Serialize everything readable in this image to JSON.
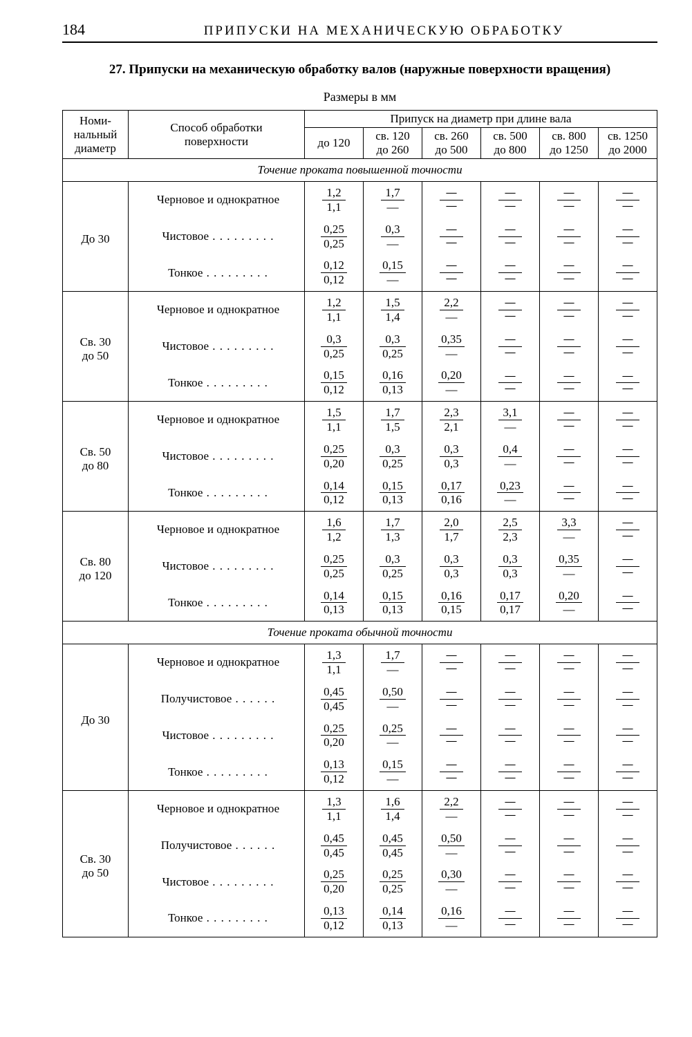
{
  "page_number": "184",
  "running_head": "ПРИПУСКИ НА МЕХАНИЧЕСКУЮ ОБРАБОТКУ",
  "caption": "27. Припуски на механическую обработку валов (наружные поверхности вращения)",
  "subcaption": "Размеры в мм",
  "headers": {
    "diam": "Номи-\nнальный\nдиаметр",
    "method": "Способ обработки\nповерхности",
    "span": "Припуск на диаметр при длине вала",
    "cols": [
      "до 120",
      "св. 120\nдо 260",
      "св. 260\nдо 500",
      "св. 500\nдо 800",
      "св. 800\nдо 1250",
      "св. 1250\nдо 2000"
    ]
  },
  "sections": [
    {
      "title": "Точение проката повышенной точности",
      "groups": [
        {
          "diam": "До 30",
          "rows": [
            {
              "label": "Черновое и однократное",
              "dots": false,
              "vals": [
                [
                  "1,2",
                  "1,1"
                ],
                [
                  "1,7",
                  "—"
                ],
                [
                  "—",
                  "—"
                ],
                [
                  "—",
                  "—"
                ],
                [
                  "—",
                  "—"
                ],
                [
                  "—",
                  "—"
                ]
              ]
            },
            {
              "label": "Чистовое",
              "dots": true,
              "vals": [
                [
                  "0,25",
                  "0,25"
                ],
                [
                  "0,3",
                  "—"
                ],
                [
                  "—",
                  "—"
                ],
                [
                  "—",
                  "—"
                ],
                [
                  "—",
                  "—"
                ],
                [
                  "—",
                  "—"
                ]
              ]
            },
            {
              "label": "Тонкое",
              "dots": true,
              "vals": [
                [
                  "0,12",
                  "0,12"
                ],
                [
                  "0,15",
                  "—"
                ],
                [
                  "—",
                  "—"
                ],
                [
                  "—",
                  "—"
                ],
                [
                  "—",
                  "—"
                ],
                [
                  "—",
                  "—"
                ]
              ]
            }
          ]
        },
        {
          "diam": "Св. 30\nдо 50",
          "rows": [
            {
              "label": "Черновое и однократное",
              "dots": false,
              "vals": [
                [
                  "1,2",
                  "1,1"
                ],
                [
                  "1,5",
                  "1,4"
                ],
                [
                  "2,2",
                  "—"
                ],
                [
                  "—",
                  "—"
                ],
                [
                  "—",
                  "—"
                ],
                [
                  "—",
                  "—"
                ]
              ]
            },
            {
              "label": "Чистовое",
              "dots": true,
              "vals": [
                [
                  "0,3",
                  "0,25"
                ],
                [
                  "0,3",
                  "0,25"
                ],
                [
                  "0,35",
                  "—"
                ],
                [
                  "—",
                  "—"
                ],
                [
                  "—",
                  "—"
                ],
                [
                  "—",
                  "—"
                ]
              ]
            },
            {
              "label": "Тонкое",
              "dots": true,
              "vals": [
                [
                  "0,15",
                  "0,12"
                ],
                [
                  "0,16",
                  "0,13"
                ],
                [
                  "0,20",
                  "—"
                ],
                [
                  "—",
                  "—"
                ],
                [
                  "—",
                  "—"
                ],
                [
                  "—",
                  "—"
                ]
              ]
            }
          ]
        },
        {
          "diam": "Св. 50\nдо 80",
          "rows": [
            {
              "label": "Черновое и однократное",
              "dots": false,
              "vals": [
                [
                  "1,5",
                  "1,1"
                ],
                [
                  "1,7",
                  "1,5"
                ],
                [
                  "2,3",
                  "2,1"
                ],
                [
                  "3,1",
                  "—"
                ],
                [
                  "—",
                  "—"
                ],
                [
                  "—",
                  "—"
                ]
              ]
            },
            {
              "label": "Чистовое",
              "dots": true,
              "vals": [
                [
                  "0,25",
                  "0,20"
                ],
                [
                  "0,3",
                  "0,25"
                ],
                [
                  "0,3",
                  "0,3"
                ],
                [
                  "0,4",
                  "—"
                ],
                [
                  "—",
                  "—"
                ],
                [
                  "—",
                  "—"
                ]
              ]
            },
            {
              "label": "Тонкое",
              "dots": true,
              "vals": [
                [
                  "0,14",
                  "0,12"
                ],
                [
                  "0,15",
                  "0,13"
                ],
                [
                  "0,17",
                  "0,16"
                ],
                [
                  "0,23",
                  "—"
                ],
                [
                  "—",
                  "—"
                ],
                [
                  "—",
                  "—"
                ]
              ]
            }
          ]
        },
        {
          "diam": "Св. 80\nдо 120",
          "rows": [
            {
              "label": "Черновое и однократное",
              "dots": false,
              "vals": [
                [
                  "1,6",
                  "1,2"
                ],
                [
                  "1,7",
                  "1,3"
                ],
                [
                  "2,0",
                  "1,7"
                ],
                [
                  "2,5",
                  "2,3"
                ],
                [
                  "3,3",
                  "—"
                ],
                [
                  "—",
                  "—"
                ]
              ]
            },
            {
              "label": "Чистовое",
              "dots": true,
              "vals": [
                [
                  "0,25",
                  "0,25"
                ],
                [
                  "0,3",
                  "0,25"
                ],
                [
                  "0,3",
                  "0,3"
                ],
                [
                  "0,3",
                  "0,3"
                ],
                [
                  "0,35",
                  "—"
                ],
                [
                  "—",
                  "—"
                ]
              ]
            },
            {
              "label": "Тонкое",
              "dots": true,
              "vals": [
                [
                  "0,14",
                  "0,13"
                ],
                [
                  "0,15",
                  "0,13"
                ],
                [
                  "0,16",
                  "0,15"
                ],
                [
                  "0,17",
                  "0,17"
                ],
                [
                  "0,20",
                  "—"
                ],
                [
                  "—",
                  "—"
                ]
              ]
            }
          ]
        }
      ]
    },
    {
      "title": "Точение проката обычной точности",
      "groups": [
        {
          "diam": "До 30",
          "rows": [
            {
              "label": "Черновое и однократное",
              "dots": false,
              "vals": [
                [
                  "1,3",
                  "1,1"
                ],
                [
                  "1,7",
                  "—"
                ],
                [
                  "—",
                  "—"
                ],
                [
                  "—",
                  "—"
                ],
                [
                  "—",
                  "—"
                ],
                [
                  "—",
                  "—"
                ]
              ]
            },
            {
              "label": "Получистовое",
              "dots": "6",
              "vals": [
                [
                  "0,45",
                  "0,45"
                ],
                [
                  "0,50",
                  "—"
                ],
                [
                  "—",
                  "—"
                ],
                [
                  "—",
                  "—"
                ],
                [
                  "—",
                  "—"
                ],
                [
                  "—",
                  "—"
                ]
              ]
            },
            {
              "label": "Чистовое",
              "dots": true,
              "vals": [
                [
                  "0,25",
                  "0,20"
                ],
                [
                  "0,25",
                  "—"
                ],
                [
                  "—",
                  "—"
                ],
                [
                  "—",
                  "—"
                ],
                [
                  "—",
                  "—"
                ],
                [
                  "—",
                  "—"
                ]
              ]
            },
            {
              "label": "Тонкое",
              "dots": true,
              "vals": [
                [
                  "0,13",
                  "0,12"
                ],
                [
                  "0,15",
                  "—"
                ],
                [
                  "—",
                  "—"
                ],
                [
                  "—",
                  "—"
                ],
                [
                  "—",
                  "—"
                ],
                [
                  "—",
                  "—"
                ]
              ]
            }
          ]
        },
        {
          "diam": "Св. 30\nдо 50",
          "rows": [
            {
              "label": "Черновое и однократное",
              "dots": false,
              "vals": [
                [
                  "1,3",
                  "1,1"
                ],
                [
                  "1,6",
                  "1,4"
                ],
                [
                  "2,2",
                  "—"
                ],
                [
                  "—",
                  "—"
                ],
                [
                  "—",
                  "—"
                ],
                [
                  "—",
                  "—"
                ]
              ]
            },
            {
              "label": "Получистовое",
              "dots": "6",
              "vals": [
                [
                  "0,45",
                  "0,45"
                ],
                [
                  "0,45",
                  "0,45"
                ],
                [
                  "0,50",
                  "—"
                ],
                [
                  "—",
                  "—"
                ],
                [
                  "—",
                  "—"
                ],
                [
                  "—",
                  "—"
                ]
              ]
            },
            {
              "label": "Чистовое",
              "dots": true,
              "vals": [
                [
                  "0,25",
                  "0,20"
                ],
                [
                  "0,25",
                  "0,25"
                ],
                [
                  "0,30",
                  "—"
                ],
                [
                  "—",
                  "—"
                ],
                [
                  "—",
                  "—"
                ],
                [
                  "—",
                  "—"
                ]
              ]
            },
            {
              "label": "Тонкое",
              "dots": true,
              "vals": [
                [
                  "0,13",
                  "0,12"
                ],
                [
                  "0,14",
                  "0,13"
                ],
                [
                  "0,16",
                  "—"
                ],
                [
                  "—",
                  "—"
                ],
                [
                  "—",
                  "—"
                ],
                [
                  "—",
                  "—"
                ]
              ]
            }
          ]
        }
      ]
    }
  ]
}
